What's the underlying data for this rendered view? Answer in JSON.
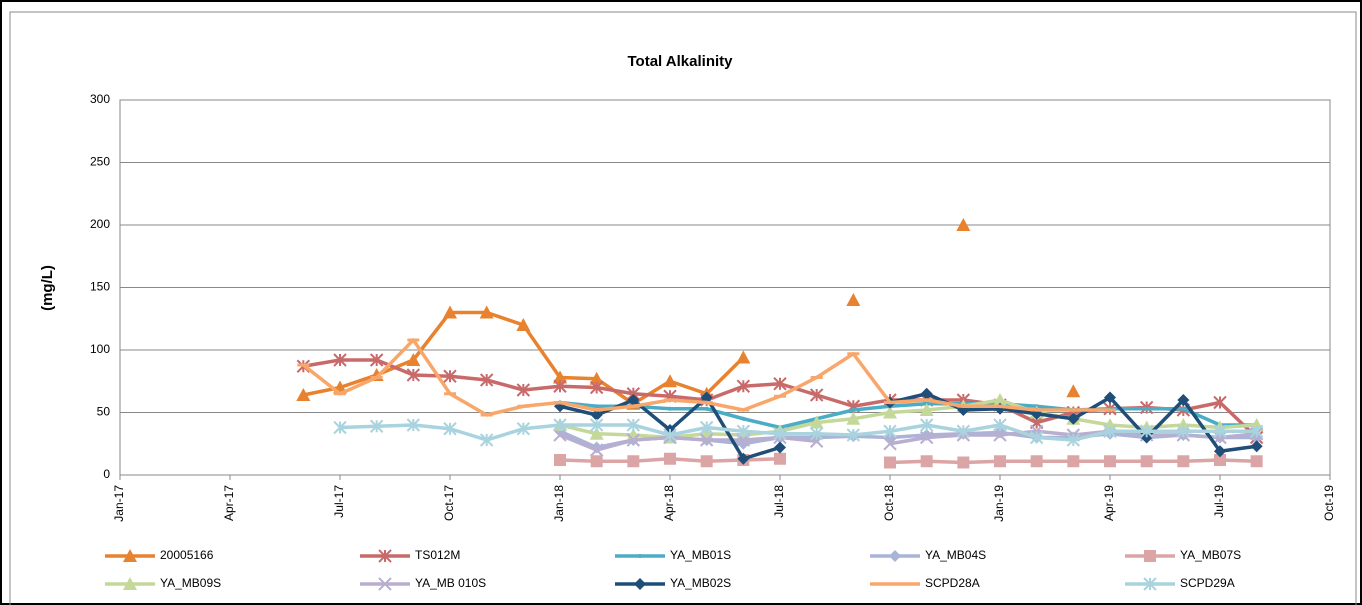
{
  "chart_data": {
    "type": "line",
    "title": "Total Alkalinity",
    "y_label": "(mg/L)",
    "x": [
      "2017-06",
      "2017-07",
      "2017-08",
      "2017-09",
      "2017-10",
      "2017-11",
      "2017-12",
      "2018-01",
      "2018-02",
      "2018-03",
      "2018-04",
      "2018-05",
      "2018-06",
      "2018-07",
      "2018-08",
      "2018-09",
      "2018-10",
      "2018-11",
      "2018-12",
      "2019-01",
      "2019-02",
      "2019-03",
      "2019-04",
      "2019-05",
      "2019-06",
      "2019-07",
      "2019-08"
    ],
    "xlim": [
      "2017-01",
      "2019-10"
    ],
    "xticks": [
      {
        "value": "2017-01",
        "label": "Jan-17"
      },
      {
        "value": "2017-04",
        "label": "Apr-17"
      },
      {
        "value": "2017-07",
        "label": "Jul-17"
      },
      {
        "value": "2017-10",
        "label": "Oct-17"
      },
      {
        "value": "2018-01",
        "label": "Jan-18"
      },
      {
        "value": "2018-04",
        "label": "Apr-18"
      },
      {
        "value": "2018-07",
        "label": "Jul-18"
      },
      {
        "value": "2018-10",
        "label": "Oct-18"
      },
      {
        "value": "2019-01",
        "label": "Jan-19"
      },
      {
        "value": "2019-04",
        "label": "Apr-19"
      },
      {
        "value": "2019-07",
        "label": "Jul-19"
      },
      {
        "value": "2019-10",
        "label": "Oct-19"
      }
    ],
    "ylim": [
      0,
      300
    ],
    "yticks": [
      0,
      50,
      100,
      150,
      200,
      250,
      300
    ],
    "grid": true,
    "series": [
      {
        "name": "20005166",
        "color": "#e8822e",
        "marker": "triangle",
        "values": [
          64,
          70,
          80,
          92,
          130,
          130,
          120,
          78,
          77,
          57,
          75,
          65,
          94,
          null,
          null,
          140,
          null,
          null,
          200,
          null,
          null,
          67,
          null,
          null,
          null,
          null,
          null
        ]
      },
      {
        "name": "TS012M",
        "color": "#c96a6a",
        "marker": "star",
        "values": [
          87,
          92,
          92,
          80,
          79,
          76,
          68,
          71,
          70,
          65,
          63,
          60,
          71,
          73,
          64,
          55,
          60,
          60,
          60,
          56,
          42,
          50,
          53,
          54,
          52,
          58,
          30
        ]
      },
      {
        "name": "YA_MB01S",
        "color": "#4bacc6",
        "marker": "none",
        "values": [
          null,
          null,
          null,
          null,
          null,
          null,
          null,
          58,
          55,
          55,
          53,
          53,
          45,
          38,
          45,
          52,
          55,
          57,
          57,
          57,
          55,
          52,
          53,
          53,
          53,
          40,
          40
        ]
      },
      {
        "name": "YA_MB04S",
        "color": "#a9b4d8",
        "marker": "diamond",
        "values": [
          null,
          null,
          null,
          null,
          null,
          null,
          null,
          35,
          22,
          28,
          30,
          28,
          25,
          30,
          30,
          31,
          30,
          32,
          33,
          34,
          30,
          30,
          33,
          30,
          32,
          30,
          30
        ]
      },
      {
        "name": "YA_MB07S",
        "color": "#dba5a5",
        "marker": "square",
        "values": [
          null,
          null,
          null,
          null,
          null,
          null,
          null,
          12,
          11,
          11,
          13,
          11,
          12,
          13,
          null,
          null,
          10,
          11,
          10,
          11,
          11,
          11,
          11,
          11,
          11,
          12,
          11
        ]
      },
      {
        "name": "YA_MB09S",
        "color": "#c4d89a",
        "marker": "triangle",
        "values": [
          null,
          null,
          null,
          null,
          null,
          null,
          null,
          40,
          33,
          32,
          30,
          33,
          32,
          35,
          42,
          45,
          50,
          52,
          55,
          60,
          50,
          45,
          40,
          38,
          40,
          38,
          40
        ]
      },
      {
        "name": "YA_MB 010S",
        "color": "#b8aed0",
        "marker": "x",
        "values": [
          null,
          null,
          null,
          null,
          null,
          null,
          null,
          32,
          20,
          28,
          30,
          28,
          28,
          30,
          27,
          null,
          25,
          30,
          32,
          32,
          35,
          32,
          35,
          32,
          32,
          30,
          33
        ]
      },
      {
        "name": "YA_MB02S",
        "color": "#1f4e79",
        "marker": "diamond",
        "values": [
          null,
          null,
          null,
          null,
          null,
          null,
          null,
          55,
          48,
          60,
          36,
          62,
          13,
          22,
          null,
          null,
          58,
          65,
          52,
          53,
          49,
          45,
          62,
          30,
          60,
          19,
          23
        ]
      },
      {
        "name": "SCPD28A",
        "color": "#f9a66b",
        "marker": "dash",
        "values": [
          88,
          65,
          78,
          108,
          65,
          48,
          55,
          58,
          52,
          55,
          60,
          58,
          52,
          63,
          78,
          97,
          58,
          60,
          55,
          55,
          52,
          52,
          52,
          null,
          null,
          null,
          null
        ]
      },
      {
        "name": "SCPD29A",
        "color": "#a9d3de",
        "marker": "star",
        "values": [
          null,
          38,
          39,
          40,
          37,
          28,
          37,
          40,
          40,
          40,
          32,
          38,
          35,
          33,
          33,
          32,
          35,
          40,
          35,
          40,
          30,
          28,
          35,
          35,
          35,
          35,
          35
        ]
      }
    ]
  }
}
